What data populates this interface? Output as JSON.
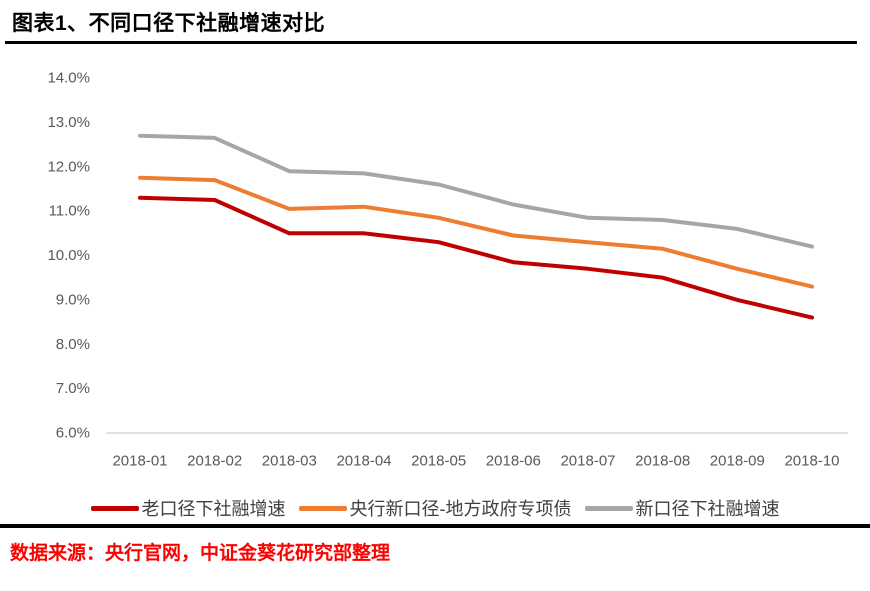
{
  "title": "图表1、不同口径下社融增速对比",
  "footer": {
    "source_text": "数据来源：央行官网，中证金葵花研究部整理",
    "color": "#FF0000"
  },
  "chart_data": {
    "type": "line",
    "x": [
      "2018-01",
      "2018-02",
      "2018-03",
      "2018-04",
      "2018-05",
      "2018-06",
      "2018-07",
      "2018-08",
      "2018-09",
      "2018-10"
    ],
    "series": [
      {
        "name": "老口径下社融增速",
        "color": "#C00000",
        "values": [
          11.3,
          11.25,
          10.5,
          10.5,
          10.3,
          9.85,
          9.7,
          9.5,
          9.0,
          8.6
        ]
      },
      {
        "name": "央行新口径-地方政府专项债",
        "color": "#ED7D31",
        "values": [
          11.75,
          11.7,
          11.05,
          11.1,
          10.85,
          10.45,
          10.3,
          10.15,
          9.7,
          9.3
        ]
      },
      {
        "name": "新口径下社融增速",
        "color": "#A6A6A6",
        "values": [
          12.7,
          12.65,
          11.9,
          11.85,
          11.6,
          11.15,
          10.85,
          10.8,
          10.6,
          10.2
        ]
      }
    ],
    "yticks": [
      "14.0%",
      "13.0%",
      "12.0%",
      "11.0%",
      "10.0%",
      "9.0%",
      "8.0%",
      "7.0%",
      "6.0%"
    ],
    "ytick_values": [
      14,
      13,
      12,
      11,
      10,
      9,
      8,
      7,
      6
    ],
    "ylim": [
      6.0,
      14.0
    ],
    "grid": false,
    "legend_position": "bottom",
    "axis_color": "#C0C0C0",
    "tick_label_color": "#595959",
    "line_width": 4
  }
}
